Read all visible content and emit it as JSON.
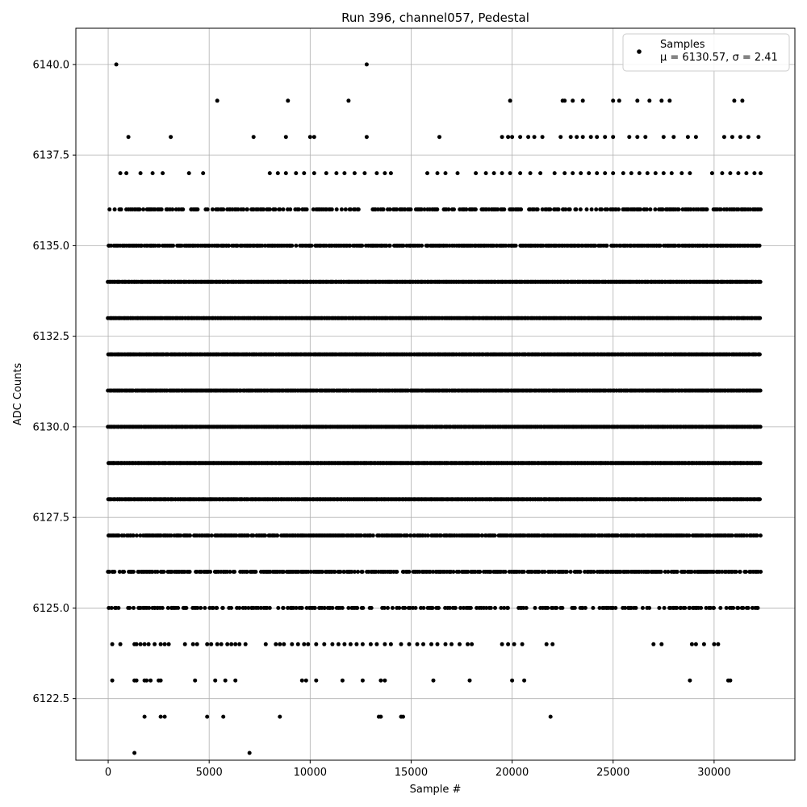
{
  "chart_data": {
    "type": "scatter",
    "title": "Run 396, channel057, Pedestal",
    "xlabel": "Sample #",
    "ylabel": "ADC Counts",
    "xlim": [
      -1600,
      34000
    ],
    "ylim": [
      6120.8,
      6141.0
    ],
    "xticks": [
      0,
      5000,
      10000,
      15000,
      20000,
      25000,
      30000
    ],
    "yticks": [
      6122.5,
      6125.0,
      6127.5,
      6130.0,
      6132.5,
      6135.0,
      6137.5,
      6140.0
    ],
    "xtick_labels": [
      "0",
      "5000",
      "10000",
      "15000",
      "20000",
      "25000",
      "30000"
    ],
    "ytick_labels": [
      "6122.5",
      "6125.0",
      "6127.5",
      "6130.0",
      "6132.5",
      "6135.0",
      "6137.5",
      "6140.0"
    ],
    "grid": true,
    "legend_position": "top-right",
    "marker_color": "#000000",
    "series": [
      {
        "name": "Samples",
        "stats_label": "μ = 6130.57, σ = 2.41",
        "x_range": [
          0,
          32300
        ],
        "levels": [
          {
            "y": 6140,
            "x": [
              400,
              12800
            ]
          },
          {
            "y": 6139,
            "x": [
              5400,
              8900,
              11900,
              19900,
              22500,
              22600,
              23000,
              23500,
              25000,
              25300,
              26200,
              26800,
              27400,
              27800,
              31000,
              31400
            ]
          },
          {
            "y": 6138,
            "x": [
              1000,
              3100,
              7200,
              8800,
              10000,
              10200,
              12800,
              16400,
              19500,
              19800,
              20000,
              20400,
              20800,
              21100,
              21500,
              22400,
              22900,
              23200,
              23500,
              23900,
              24200,
              24600,
              25000,
              25800,
              26200,
              26600,
              27500,
              28000,
              28700,
              29100,
              30500,
              30900,
              31300,
              31700,
              32200
            ]
          },
          {
            "y": 6137,
            "x": [
              600,
              900,
              1600,
              2200,
              2700,
              4000,
              4700,
              8000,
              8400,
              8800,
              9300,
              9700,
              10200,
              10800,
              11300,
              11700,
              12200,
              12700,
              13300,
              13700,
              14000,
              15800,
              16300,
              16700,
              17300,
              18200,
              18700,
              19100,
              19500,
              19900,
              20400,
              20900,
              21400,
              22100,
              22600,
              23000,
              23400,
              23800,
              24200,
              24600,
              25000,
              25500,
              25900,
              26300,
              26700,
              27100,
              27500,
              27900,
              28400,
              28800,
              29900,
              30400,
              30800,
              31200,
              31600,
              32000,
              32300
            ]
          },
          {
            "y": 6136,
            "x_from": 0,
            "x_to": 32300,
            "density": 0.55
          },
          {
            "y": 6135,
            "x_from": 0,
            "x_to": 32300,
            "density": 0.8
          },
          {
            "y": 6134,
            "x_from": 0,
            "x_to": 32300,
            "density": 1.0
          },
          {
            "y": 6133,
            "x_from": 0,
            "x_to": 32300,
            "density": 1.0
          },
          {
            "y": 6132,
            "x_from": 0,
            "x_to": 32300,
            "density": 1.0
          },
          {
            "y": 6131,
            "x_from": 0,
            "x_to": 32300,
            "density": 1.0
          },
          {
            "y": 6130,
            "x_from": 0,
            "x_to": 32300,
            "density": 1.0
          },
          {
            "y": 6129,
            "x_from": 0,
            "x_to": 32300,
            "density": 1.0
          },
          {
            "y": 6128,
            "x_from": 0,
            "x_to": 32300,
            "density": 1.0
          },
          {
            "y": 6127,
            "x_from": 0,
            "x_to": 32300,
            "density": 0.85
          },
          {
            "y": 6126,
            "x_from": 0,
            "x_to": 32300,
            "density": 0.7
          },
          {
            "y": 6125,
            "x_from": 0,
            "x_to": 32300,
            "density": 0.45
          },
          {
            "y": 6124,
            "x": [
              200,
              600,
              1300,
              1400,
              1600,
              1800,
              2000,
              2300,
              2600,
              2800,
              3000,
              3800,
              4200,
              4400,
              4900,
              5100,
              5400,
              5600,
              5900,
              6100,
              6300,
              6500,
              6800,
              7800,
              8300,
              8500,
              8700,
              9100,
              9400,
              9700,
              9900,
              10300,
              10700,
              11100,
              11400,
              11700,
              12000,
              12300,
              12600,
              13000,
              13300,
              13700,
              14000,
              14500,
              14900,
              15300,
              15600,
              16000,
              16300,
              16700,
              17000,
              17400,
              17800,
              18000,
              19500,
              19800,
              20100,
              20500,
              21700,
              22000,
              27000,
              27400,
              28900,
              29100,
              29500,
              30000,
              30200
            ]
          },
          {
            "y": 6123,
            "x": [
              200,
              1300,
              1400,
              1800,
              1900,
              2100,
              2500,
              2600,
              4300,
              5300,
              5800,
              6300,
              9600,
              9800,
              10300,
              11600,
              12600,
              13500,
              13700,
              16100,
              17900,
              20000,
              20600,
              28800,
              30700,
              30800
            ]
          },
          {
            "y": 6122,
            "x": [
              1800,
              2600,
              2800,
              4900,
              5700,
              8500,
              13400,
              13500,
              14500,
              14600,
              21900
            ]
          },
          {
            "y": 6121,
            "x": [
              1300,
              7000
            ]
          }
        ]
      }
    ]
  }
}
